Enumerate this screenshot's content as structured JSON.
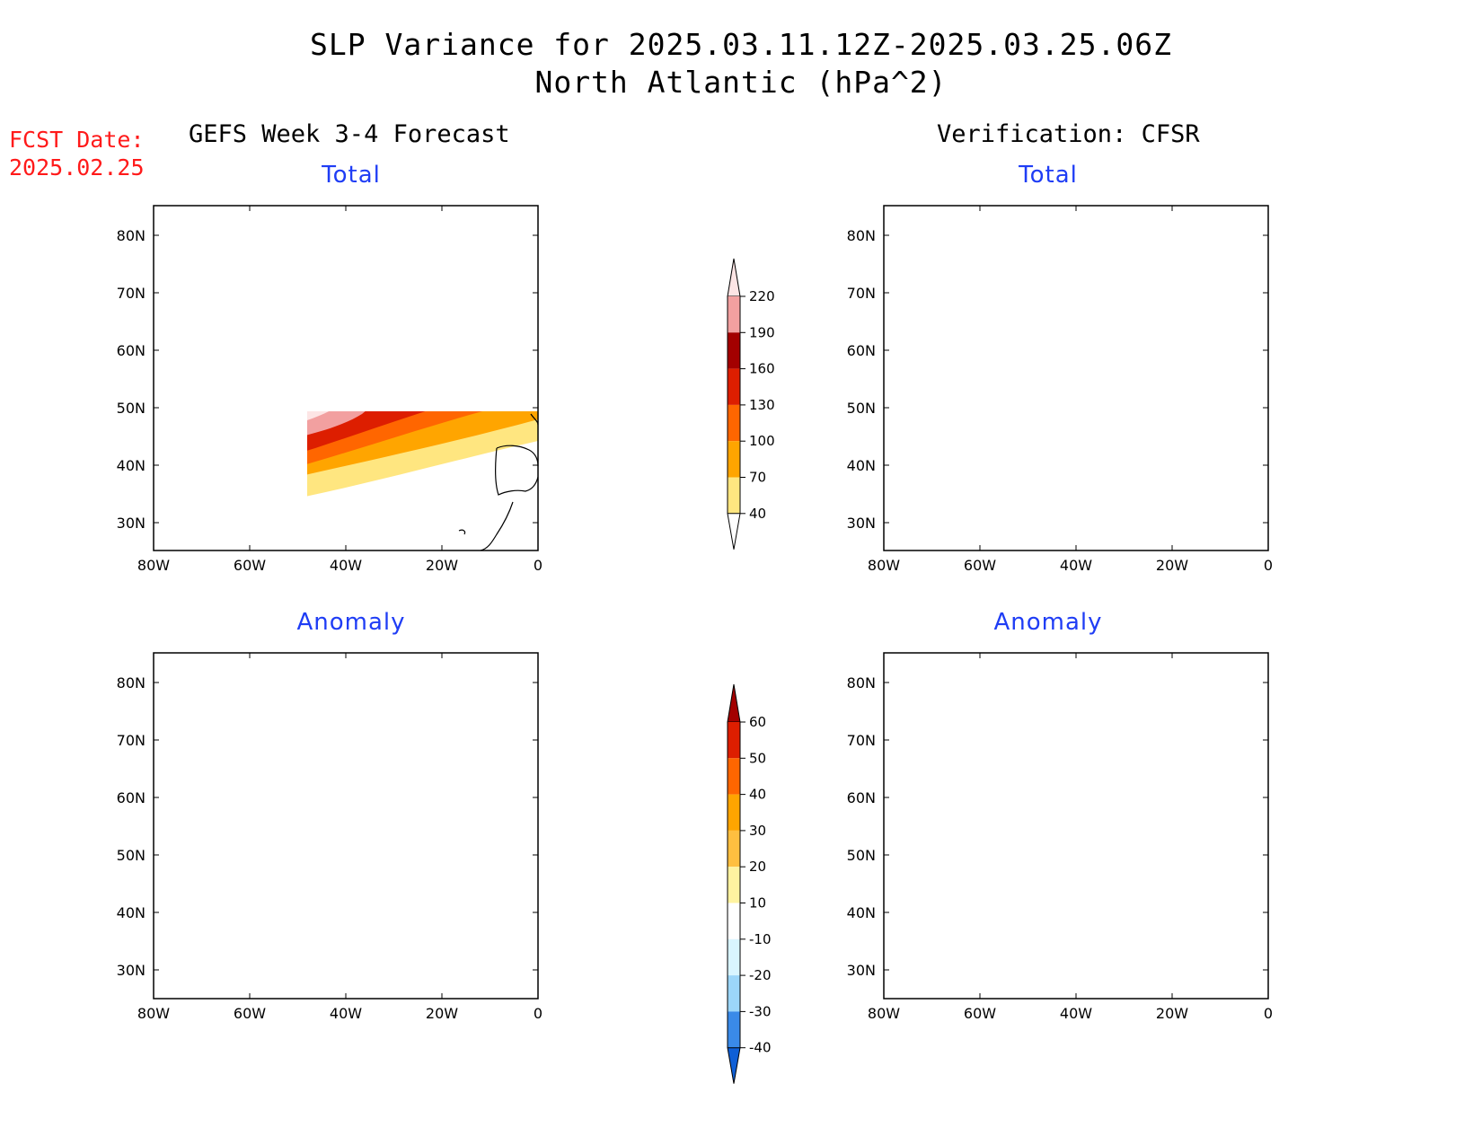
{
  "title": {
    "line1": "SLP Variance for 2025.03.11.12Z-2025.03.25.06Z",
    "line2": "North Atlantic (hPa^2)"
  },
  "fcst": {
    "line1": "FCST Date:",
    "line2": "2025.02.25"
  },
  "columns": {
    "left": "GEFS Week 3-4 Forecast",
    "right": "Verification: CFSR"
  },
  "panels": {
    "tl": "Total",
    "tr": "Total",
    "bl": "Anomaly",
    "br": "Anomaly"
  },
  "axes": {
    "lat_ticks": [
      "80N",
      "70N",
      "60N",
      "50N",
      "40N",
      "30N"
    ],
    "lon_ticks": [
      "80W",
      "60W",
      "40W",
      "20W",
      "0"
    ]
  },
  "colorbars": {
    "total": {
      "levels": [
        "220",
        "190",
        "160",
        "130",
        "100",
        "70",
        "40"
      ],
      "colors": [
        "#fde5e5",
        "#f2a0a0",
        "#a30000",
        "#dd1e00",
        "#ff6600",
        "#ffa500",
        "#ffe680",
        "#ffffff"
      ]
    },
    "anomaly": {
      "levels": [
        "60",
        "50",
        "40",
        "30",
        "20",
        "10",
        "-10",
        "-20",
        "-30",
        "-40"
      ],
      "colors": [
        "#a30000",
        "#dd1e00",
        "#ff6600",
        "#ffa500",
        "#ffbf40",
        "#fff3a0",
        "#ffffff",
        "#d9f5ff",
        "#9cd6f9",
        "#3a8ae8",
        "#0f5fd6"
      ]
    }
  }
}
